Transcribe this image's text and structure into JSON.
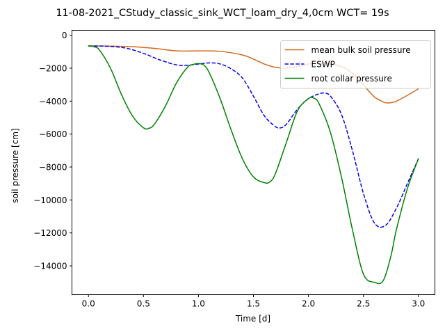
{
  "chart_data": {
    "type": "line",
    "title": "11-08-2021_CStudy_classic_sink_WCT_loam_dry_4,0cm  WCT= 19s",
    "xlabel": "Time [d]",
    "ylabel": "soil pressure [cm]",
    "xlim": [
      -0.15,
      3.15
    ],
    "ylim": [
      -15750,
      300
    ],
    "xticks": [
      0.0,
      0.5,
      1.0,
      1.5,
      2.0,
      2.5,
      3.0
    ],
    "xtick_labels": [
      "0.0",
      "0.5",
      "1.0",
      "1.5",
      "2.0",
      "2.5",
      "3.0"
    ],
    "yticks": [
      0,
      -2000,
      -4000,
      -6000,
      -8000,
      -10000,
      -12000,
      -14000
    ],
    "ytick_labels": [
      "0",
      "−2000",
      "−4000",
      "−6000",
      "−8000",
      "−10000",
      "−12000",
      "−14000"
    ],
    "grid": false,
    "legend_position": "top-right",
    "series": [
      {
        "name": "mean bulk soil pressure",
        "color": "#d2691e",
        "dash": "solid",
        "x": [
          0.0,
          0.2,
          0.4,
          0.6,
          0.8,
          1.0,
          1.2,
          1.4,
          1.5,
          1.6,
          1.7,
          1.8,
          1.9,
          2.0,
          2.1,
          2.2,
          2.3,
          2.4,
          2.5,
          2.55,
          2.6,
          2.65,
          2.7,
          2.75,
          2.8,
          2.9,
          3.0
        ],
        "y": [
          -650,
          -660,
          -700,
          -800,
          -950,
          -950,
          -980,
          -1200,
          -1450,
          -1750,
          -1950,
          -2000,
          -1900,
          -1750,
          -1700,
          -1750,
          -1900,
          -2300,
          -3000,
          -3400,
          -3750,
          -3950,
          -4100,
          -4100,
          -4000,
          -3650,
          -3250
        ]
      },
      {
        "name": "ESWP",
        "color": "#0000ee",
        "dash": "dashed",
        "x": [
          0.0,
          0.2,
          0.35,
          0.5,
          0.65,
          0.8,
          0.9,
          1.0,
          1.1,
          1.2,
          1.3,
          1.4,
          1.5,
          1.6,
          1.7,
          1.75,
          1.8,
          1.9,
          2.0,
          2.1,
          2.15,
          2.2,
          2.3,
          2.4,
          2.5,
          2.6,
          2.7,
          2.8,
          2.9,
          3.0
        ],
        "y": [
          -650,
          -680,
          -800,
          -1100,
          -1500,
          -1800,
          -1820,
          -1750,
          -1680,
          -1750,
          -2050,
          -2600,
          -3700,
          -4900,
          -5550,
          -5620,
          -5400,
          -4500,
          -3850,
          -3550,
          -3520,
          -3700,
          -4800,
          -7000,
          -9600,
          -11400,
          -11550,
          -10500,
          -9000,
          -7500
        ]
      },
      {
        "name": "root collar pressure",
        "color": "#008000",
        "dash": "solid",
        "x": [
          0.0,
          0.05,
          0.1,
          0.2,
          0.3,
          0.4,
          0.5,
          0.55,
          0.6,
          0.7,
          0.8,
          0.9,
          0.95,
          1.0,
          1.05,
          1.1,
          1.2,
          1.3,
          1.4,
          1.5,
          1.6,
          1.65,
          1.7,
          1.8,
          1.9,
          2.0,
          2.05,
          2.1,
          2.2,
          2.3,
          2.4,
          2.5,
          2.6,
          2.68,
          2.75,
          2.8,
          2.9,
          3.0
        ],
        "y": [
          -650,
          -700,
          -900,
          -2000,
          -3600,
          -4900,
          -5620,
          -5650,
          -5400,
          -4300,
          -2900,
          -1950,
          -1780,
          -1720,
          -1820,
          -2300,
          -3900,
          -5800,
          -7500,
          -8600,
          -8950,
          -8900,
          -8400,
          -6500,
          -4600,
          -3850,
          -3820,
          -4200,
          -5900,
          -8600,
          -11800,
          -14500,
          -15000,
          -14900,
          -13400,
          -11800,
          -9300,
          -7500
        ]
      }
    ]
  }
}
